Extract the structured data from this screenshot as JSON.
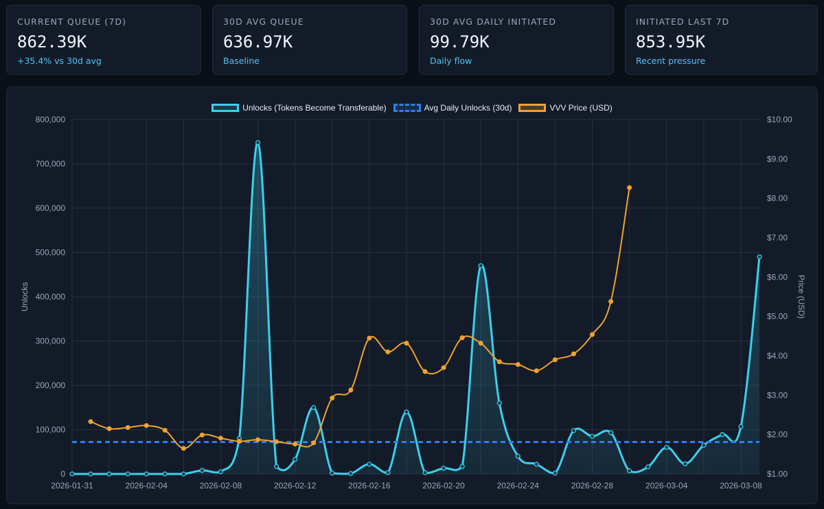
{
  "cards": [
    {
      "label": "CURRENT QUEUE (7D)",
      "value": "862.39K",
      "sub": "+35.4% vs 30d avg"
    },
    {
      "label": "30D AVG QUEUE",
      "value": "636.97K",
      "sub": "Baseline"
    },
    {
      "label": "30D AVG DAILY INITIATED",
      "value": "99.79K",
      "sub": "Daily flow"
    },
    {
      "label": "INITIATED LAST 7D",
      "value": "853.95K",
      "sub": "Recent pressure"
    }
  ],
  "legend": {
    "unlocks": "Unlocks (Tokens Become Transferable)",
    "avg": "Avg Daily Unlocks (30d)",
    "price": "VVV Price (USD)"
  },
  "colors": {
    "unlocks": "#3ad0ee",
    "avg": "#2f7ef0",
    "price": "#f0a230",
    "grid": "#253041",
    "tick": "#9aa6b8"
  },
  "chart_data": {
    "type": "line",
    "title": "",
    "ylabel": "Unlocks",
    "y2label": "Price (USD)",
    "ylim": [
      0,
      800000
    ],
    "y2lim": [
      1,
      10
    ],
    "yticks": [
      "0",
      "100,000",
      "200,000",
      "300,000",
      "400,000",
      "500,000",
      "600,000",
      "700,000",
      "800,000"
    ],
    "y2ticks": [
      "$1.00",
      "$2.00",
      "$3.00",
      "$4.00",
      "$5.00",
      "$6.00",
      "$7.00",
      "$8.00",
      "$9.00",
      "$10.00"
    ],
    "xtick_labels": [
      "2026-01-31",
      "2026-02-04",
      "2026-02-08",
      "2026-02-12",
      "2026-02-16",
      "2026-02-20",
      "2026-02-24",
      "2026-02-28",
      "2026-03-04",
      "2026-03-08"
    ],
    "categories": [
      "2026-01-31",
      "2026-02-01",
      "2026-02-02",
      "2026-02-03",
      "2026-02-04",
      "2026-02-05",
      "2026-02-06",
      "2026-02-07",
      "2026-02-08",
      "2026-02-09",
      "2026-02-10",
      "2026-02-11",
      "2026-02-12",
      "2026-02-13",
      "2026-02-14",
      "2026-02-15",
      "2026-02-16",
      "2026-02-17",
      "2026-02-18",
      "2026-02-19",
      "2026-02-20",
      "2026-02-21",
      "2026-02-22",
      "2026-02-23",
      "2026-02-24",
      "2026-02-25",
      "2026-02-26",
      "2026-02-27",
      "2026-02-28",
      "2026-03-01",
      "2026-03-02",
      "2026-03-03",
      "2026-03-04",
      "2026-03-05",
      "2026-03-06",
      "2026-03-07",
      "2026-03-08",
      "2026-03-09"
    ],
    "series": [
      {
        "name": "Unlocks (Tokens Become Transferable)",
        "axis": "left",
        "values": [
          0,
          0,
          0,
          0,
          0,
          0,
          0,
          8000,
          5000,
          80000,
          748000,
          17000,
          33000,
          150000,
          2000,
          1000,
          22000,
          3000,
          140000,
          3000,
          13000,
          17000,
          470000,
          160000,
          40000,
          22000,
          2000,
          98000,
          85000,
          93000,
          7000,
          16000,
          60000,
          23000,
          65000,
          89000,
          107000,
          490000
        ]
      },
      {
        "name": "Avg Daily Unlocks (30d)",
        "axis": "left",
        "style": "dashed",
        "value": 72000
      },
      {
        "name": "VVV Price (USD)",
        "axis": "right",
        "values": [
          null,
          2.33,
          2.15,
          2.18,
          2.23,
          2.11,
          1.65,
          1.99,
          1.91,
          1.83,
          1.87,
          1.82,
          1.76,
          1.79,
          2.93,
          3.13,
          4.45,
          4.1,
          4.32,
          3.6,
          3.7,
          4.46,
          4.32,
          3.85,
          3.78,
          3.62,
          3.9,
          4.05,
          4.54,
          5.38,
          8.27,
          null,
          null,
          null,
          null,
          null,
          null,
          null
        ]
      }
    ]
  }
}
